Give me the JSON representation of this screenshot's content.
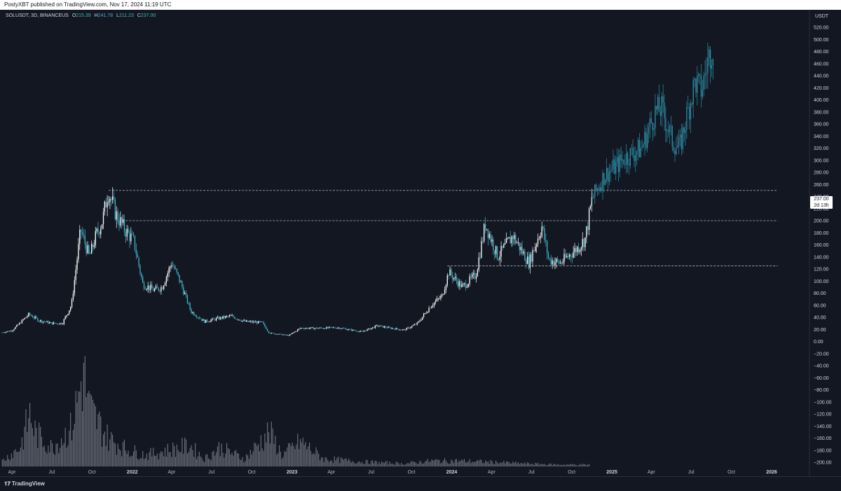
{
  "header": {
    "publisher_line": "PostyXBT published on TradingView.com, Nov 17, 2024 11:19 UTC"
  },
  "legend": {
    "symbol": "SOLUSDT, 3D, BINANCEUS",
    "o_key": "O",
    "o_val": "215.39",
    "h_key": "H",
    "h_val": "241.78",
    "l_key": "L",
    "l_val": "211.23",
    "c_key": "C",
    "c_val": "237.00"
  },
  "price_scale": {
    "unit": "USDT",
    "last_price": "237.00",
    "countdown": "2d 13h"
  },
  "footer": {
    "brand": "TradingView",
    "logo_glyph": "𝟏𝟕"
  },
  "colors": {
    "background": "#131722",
    "candle_up": "#ffffff",
    "candle_down": "#3fb3c9",
    "projection": "#2e8fa6",
    "volume": "#8e939e",
    "level_line": "#b2b5be"
  },
  "chart_data": {
    "type": "candlestick",
    "symbol": "SOLUSDT",
    "interval": "3D",
    "exchange": "BINANCEUS",
    "title": "",
    "xlabel": "",
    "ylabel": "USDT",
    "ylim": [
      -200,
      520
    ],
    "y_ticks": [
      "520.00",
      "500.00",
      "480.00",
      "460.00",
      "440.00",
      "420.00",
      "400.00",
      "380.00",
      "360.00",
      "340.00",
      "320.00",
      "300.00",
      "280.00",
      "260.00",
      "240.00",
      "220.00",
      "200.00",
      "180.00",
      "160.00",
      "140.00",
      "120.00",
      "100.00",
      "80.00",
      "60.00",
      "40.00",
      "20.00",
      "0.00",
      "−20.00",
      "−40.00",
      "−60.00",
      "−80.00",
      "−100.00",
      "−120.00",
      "−140.00",
      "−160.00",
      "−180.00",
      "−200.00"
    ],
    "x_ticks": [
      {
        "label": "Apr",
        "date": "2021-04-01"
      },
      {
        "label": "Jul",
        "date": "2021-07-01"
      },
      {
        "label": "Oct",
        "date": "2021-10-01"
      },
      {
        "label": "2022",
        "date": "2022-01-01",
        "bold": true
      },
      {
        "label": "Apr",
        "date": "2022-04-01"
      },
      {
        "label": "Jul",
        "date": "2022-07-01"
      },
      {
        "label": "Oct",
        "date": "2022-10-01"
      },
      {
        "label": "2023",
        "date": "2023-01-01",
        "bold": true
      },
      {
        "label": "Apr",
        "date": "2023-04-01"
      },
      {
        "label": "Jul",
        "date": "2023-07-01"
      },
      {
        "label": "Oct",
        "date": "2023-10-01"
      },
      {
        "label": "2024",
        "date": "2024-01-01",
        "bold": true
      },
      {
        "label": "Apr",
        "date": "2024-04-01"
      },
      {
        "label": "Jul",
        "date": "2024-07-01"
      },
      {
        "label": "Oct",
        "date": "2024-10-01"
      },
      {
        "label": "2025",
        "date": "2025-01-01",
        "bold": true
      },
      {
        "label": "Apr",
        "date": "2025-04-01"
      },
      {
        "label": "Jul",
        "date": "2025-07-01"
      },
      {
        "label": "Oct",
        "date": "2025-10-01"
      },
      {
        "label": "2026",
        "date": "2026-01-01",
        "bold": true
      }
    ],
    "price_path": [
      {
        "date": "2021-03-10",
        "price": 15
      },
      {
        "date": "2021-04-01",
        "price": 18
      },
      {
        "date": "2021-05-10",
        "price": 45
      },
      {
        "date": "2021-06-01",
        "price": 35
      },
      {
        "date": "2021-07-01",
        "price": 30
      },
      {
        "date": "2021-07-25",
        "price": 30
      },
      {
        "date": "2021-08-15",
        "price": 60
      },
      {
        "date": "2021-09-05",
        "price": 185
      },
      {
        "date": "2021-09-25",
        "price": 140
      },
      {
        "date": "2021-10-10",
        "price": 175
      },
      {
        "date": "2021-10-25",
        "price": 200
      },
      {
        "date": "2021-11-07",
        "price": 250
      },
      {
        "date": "2021-11-25",
        "price": 210
      },
      {
        "date": "2021-12-15",
        "price": 185
      },
      {
        "date": "2022-01-05",
        "price": 165
      },
      {
        "date": "2022-01-25",
        "price": 95
      },
      {
        "date": "2022-02-20",
        "price": 85
      },
      {
        "date": "2022-03-10",
        "price": 90
      },
      {
        "date": "2022-04-01",
        "price": 130
      },
      {
        "date": "2022-04-20",
        "price": 100
      },
      {
        "date": "2022-05-15",
        "price": 50
      },
      {
        "date": "2022-06-15",
        "price": 33
      },
      {
        "date": "2022-07-15",
        "price": 38
      },
      {
        "date": "2022-08-15",
        "price": 42
      },
      {
        "date": "2022-09-15",
        "price": 33
      },
      {
        "date": "2022-10-25",
        "price": 31
      },
      {
        "date": "2022-11-10",
        "price": 14
      },
      {
        "date": "2022-12-25",
        "price": 10
      },
      {
        "date": "2023-01-20",
        "price": 22
      },
      {
        "date": "2023-03-01",
        "price": 22
      },
      {
        "date": "2023-04-15",
        "price": 23
      },
      {
        "date": "2023-06-10",
        "price": 16
      },
      {
        "date": "2023-07-15",
        "price": 26
      },
      {
        "date": "2023-08-15",
        "price": 22
      },
      {
        "date": "2023-09-15",
        "price": 19
      },
      {
        "date": "2023-10-15",
        "price": 30
      },
      {
        "date": "2023-11-15",
        "price": 60
      },
      {
        "date": "2023-12-10",
        "price": 75
      },
      {
        "date": "2023-12-25",
        "price": 115
      },
      {
        "date": "2024-01-25",
        "price": 90
      },
      {
        "date": "2024-02-25",
        "price": 110
      },
      {
        "date": "2024-03-18",
        "price": 195
      },
      {
        "date": "2024-04-15",
        "price": 140
      },
      {
        "date": "2024-05-20",
        "price": 175
      },
      {
        "date": "2024-06-25",
        "price": 130
      },
      {
        "date": "2024-07-25",
        "price": 190
      },
      {
        "date": "2024-08-10",
        "price": 135
      },
      {
        "date": "2024-09-05",
        "price": 130
      },
      {
        "date": "2024-10-15",
        "price": 155
      },
      {
        "date": "2024-11-01",
        "price": 170
      },
      {
        "date": "2024-11-17",
        "price": 237
      }
    ],
    "projection_path": [
      {
        "date": "2024-11-17",
        "price": 237
      },
      {
        "date": "2024-12-15",
        "price": 275
      },
      {
        "date": "2025-01-10",
        "price": 290
      },
      {
        "date": "2025-02-01",
        "price": 305
      },
      {
        "date": "2025-03-10",
        "price": 320
      },
      {
        "date": "2025-04-10",
        "price": 380
      },
      {
        "date": "2025-04-25",
        "price": 385
      },
      {
        "date": "2025-05-20",
        "price": 330
      },
      {
        "date": "2025-06-05",
        "price": 320
      },
      {
        "date": "2025-06-20",
        "price": 370
      },
      {
        "date": "2025-07-10",
        "price": 430
      },
      {
        "date": "2025-07-25",
        "price": 415
      },
      {
        "date": "2025-08-10",
        "price": 470
      },
      {
        "date": "2025-08-20",
        "price": 490
      }
    ],
    "volume": [
      {
        "date": "2021-03-10",
        "level": 0.06
      },
      {
        "date": "2021-04-20",
        "level": 0.2
      },
      {
        "date": "2021-05-12",
        "level": 0.55
      },
      {
        "date": "2021-05-25",
        "level": 0.35
      },
      {
        "date": "2021-07-01",
        "level": 0.2
      },
      {
        "date": "2021-08-15",
        "level": 0.4
      },
      {
        "date": "2021-09-05",
        "level": 0.85
      },
      {
        "date": "2021-09-12",
        "level": 1.0
      },
      {
        "date": "2021-09-25",
        "level": 0.6
      },
      {
        "date": "2021-11-07",
        "level": 0.3
      },
      {
        "date": "2021-12-20",
        "level": 0.18
      },
      {
        "date": "2022-02-01",
        "level": 0.12
      },
      {
        "date": "2022-05-12",
        "level": 0.22
      },
      {
        "date": "2022-06-15",
        "level": 0.08
      },
      {
        "date": "2022-07-20",
        "level": 0.2
      },
      {
        "date": "2022-09-15",
        "level": 0.08
      },
      {
        "date": "2022-11-10",
        "level": 0.36
      },
      {
        "date": "2022-12-10",
        "level": 0.12
      },
      {
        "date": "2023-01-20",
        "level": 0.26
      },
      {
        "date": "2023-03-15",
        "level": 0.08
      },
      {
        "date": "2023-06-10",
        "level": 0.05
      },
      {
        "date": "2023-09-15",
        "level": 0.03
      },
      {
        "date": "2023-11-15",
        "level": 0.06
      },
      {
        "date": "2024-01-10",
        "level": 0.06
      },
      {
        "date": "2024-03-18",
        "level": 0.05
      },
      {
        "date": "2024-06-25",
        "level": 0.03
      },
      {
        "date": "2024-09-01",
        "level": 0.02
      },
      {
        "date": "2024-11-10",
        "level": 0.02
      }
    ],
    "horizontal_levels": [
      {
        "price": 250,
        "from": "2021-11-08",
        "to": "2026-01-15",
        "style": "dashed"
      },
      {
        "price": 200,
        "from": "2021-12-01",
        "to": "2026-01-15",
        "style": "dashed"
      },
      {
        "price": 125,
        "from": "2023-12-22",
        "to": "2026-01-15",
        "style": "dashed"
      }
    ],
    "grid": false,
    "legend_position": "top-left"
  }
}
